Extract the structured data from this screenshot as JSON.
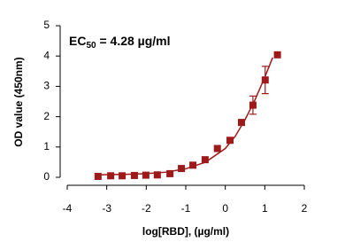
{
  "chart_data": {
    "type": "scatter",
    "x_label": "log[RBD], (µg/ml)",
    "y_label": "OD value (450nm)",
    "annotation": {
      "text": "EC",
      "sub": "50",
      "rest": " = 4.28 µg/ml"
    },
    "color": "#9e1a1a",
    "x": [
      -3.22,
      -2.9,
      -2.61,
      -2.3,
      -2.01,
      -1.72,
      -1.4,
      -1.11,
      -0.82,
      -0.51,
      -0.2,
      0.12,
      0.41,
      0.7,
      1.01,
      1.32
    ],
    "values": [
      0.03,
      0.05,
      0.05,
      0.06,
      0.07,
      0.08,
      0.12,
      0.29,
      0.4,
      0.58,
      0.95,
      1.22,
      1.81,
      2.38,
      3.21,
      4.04
    ],
    "errors": [
      null,
      null,
      null,
      null,
      null,
      null,
      null,
      null,
      null,
      null,
      null,
      null,
      null,
      0.3,
      0.45,
      null
    ],
    "fit": {
      "x": [
        -3.3,
        -2.5,
        -2,
        -1.5,
        -1,
        -0.5,
        0,
        0.25,
        0.5,
        0.75,
        1,
        1.2
      ],
      "values": [
        0.08,
        0.1,
        0.12,
        0.17,
        0.28,
        0.5,
        0.95,
        1.35,
        1.9,
        2.55,
        3.3,
        3.95
      ]
    },
    "xlim": [
      -4,
      2
    ],
    "xticks": [
      -4,
      -3,
      -2,
      -1,
      0,
      1,
      2
    ],
    "ylim": [
      0,
      5
    ],
    "yticks": [
      0,
      1,
      2,
      3,
      4,
      5
    ]
  }
}
